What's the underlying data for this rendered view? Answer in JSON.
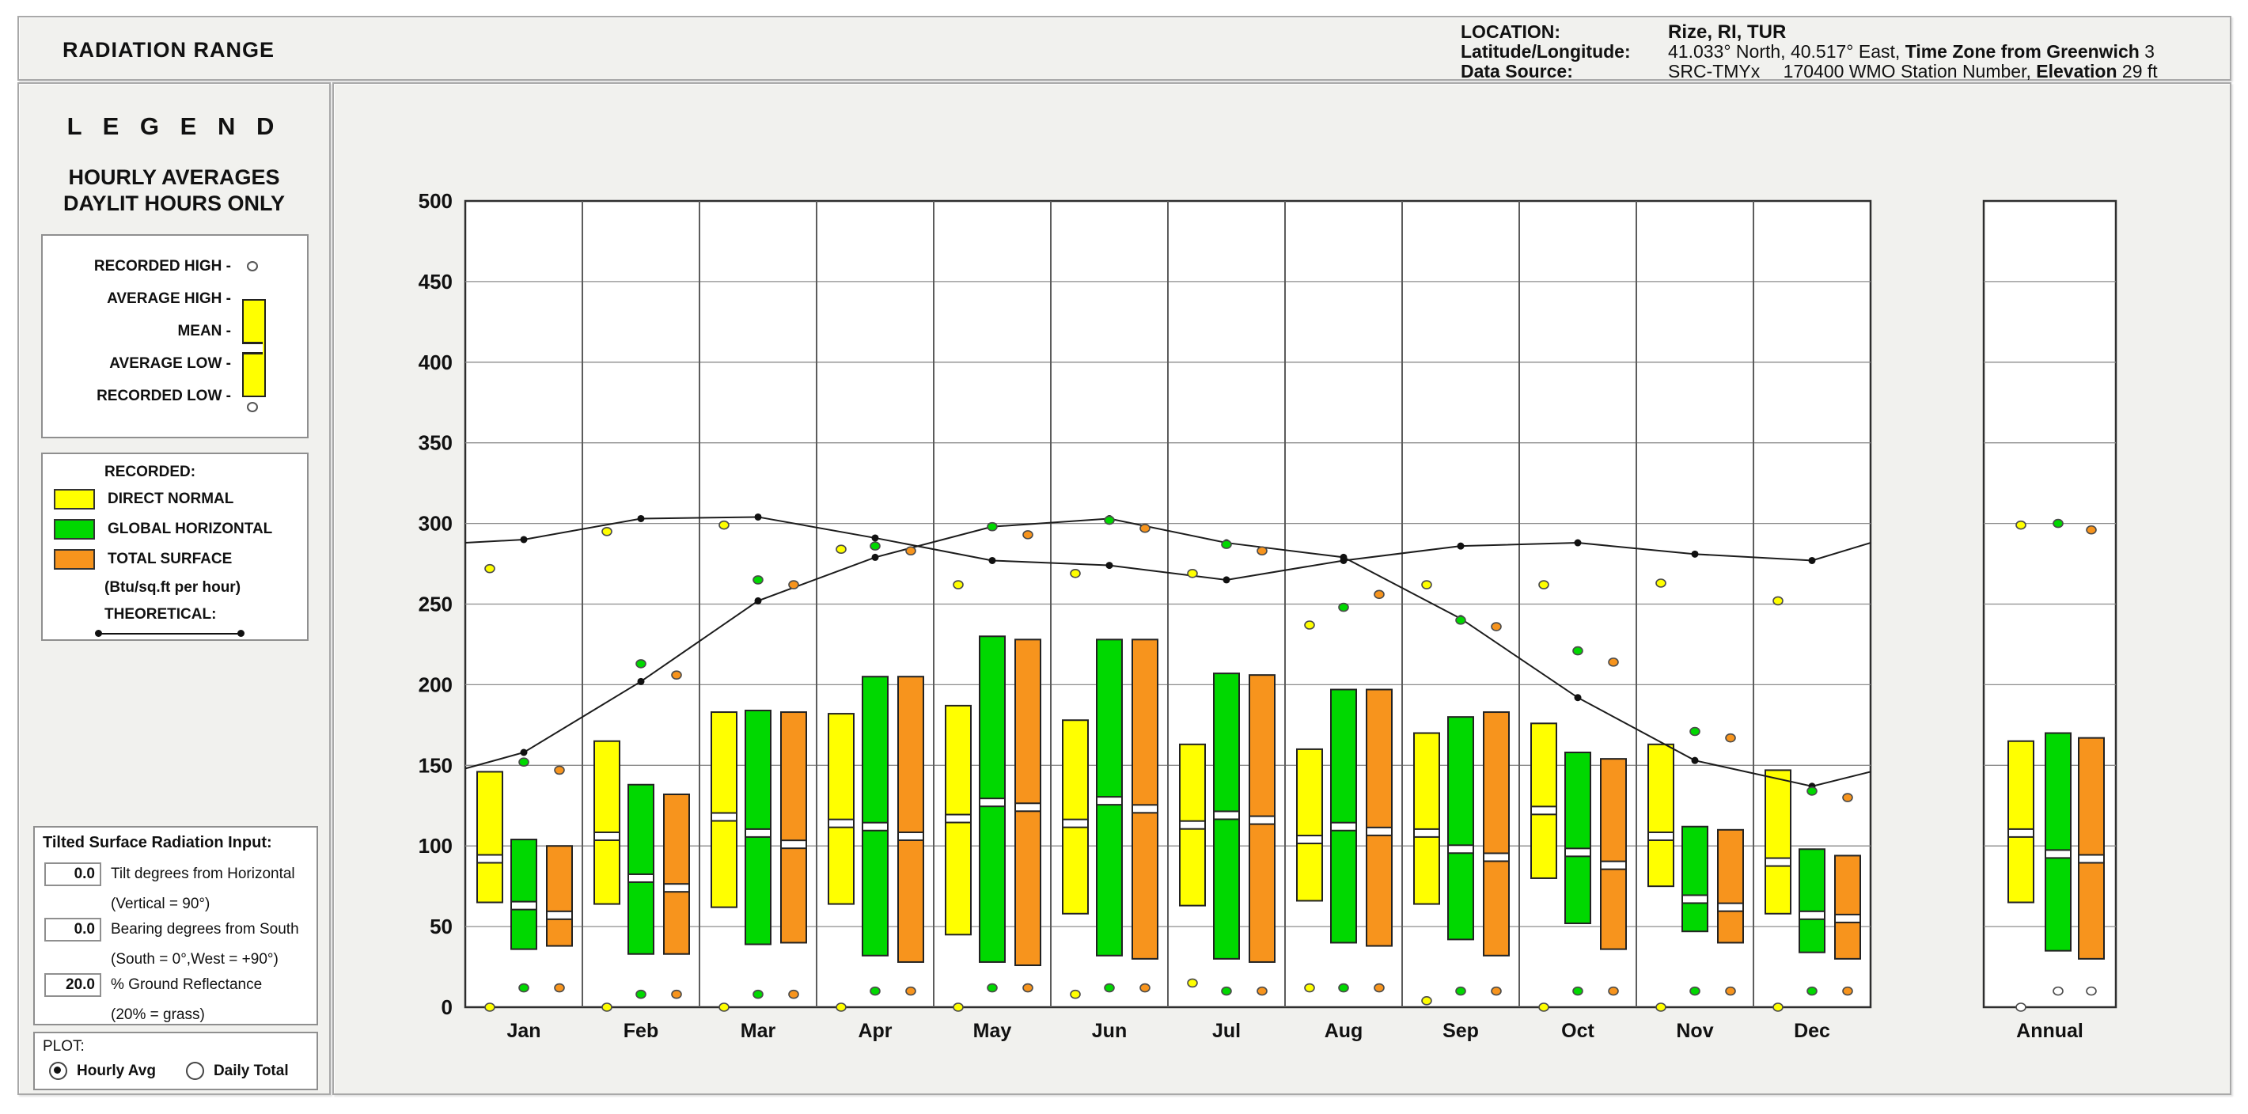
{
  "header": {
    "title": "RADIATION RANGE",
    "rows": [
      {
        "label": "LOCATION:",
        "parts": [
          {
            "t": "Rize, RI, TUR",
            "b": true
          }
        ]
      },
      {
        "label": "Latitude/Longitude:",
        "parts": [
          {
            "t": "41.033° North, 40.517° East, ",
            "b": false
          },
          {
            "t": "Time Zone from Greenwich",
            "b": true
          },
          {
            "t": " 3",
            "b": false
          }
        ]
      },
      {
        "label": "Data Source:",
        "parts": [
          {
            "t": "SRC-TMYx  170400 WMO Station Number, ",
            "b": false
          },
          {
            "t": "Elevation",
            "b": true
          },
          {
            "t": " 29 ft",
            "b": false
          }
        ]
      }
    ]
  },
  "legend": {
    "title": "L E G E N D",
    "subtitle1": "HOURLY AVERAGES",
    "subtitle2": "DAYLIT HOURS ONLY",
    "range_items": [
      "RECORDED HIGH -",
      "AVERAGE HIGH -",
      "MEAN -",
      "AVERAGE LOW -",
      "RECORDED LOW -"
    ],
    "recorded_label": "RECORDED:",
    "series": [
      {
        "label": "DIRECT NORMAL",
        "color": "#ffff00"
      },
      {
        "label": "GLOBAL HORIZONTAL",
        "color": "#00d800"
      },
      {
        "label": "TOTAL SURFACE",
        "color": "#f7941d"
      }
    ],
    "units_note": "(Btu/sq.ft per hour)",
    "theoretical_label": "THEORETICAL:"
  },
  "inputs": {
    "title": "Tilted Surface Radiation Input:",
    "fields": [
      {
        "value": "0.0",
        "label": "Tilt degrees from Horizontal",
        "sublabel": "(Vertical = 90°)"
      },
      {
        "value": "0.0",
        "label": "Bearing degrees from South",
        "sublabel": "(South = 0°,West = +90°)"
      },
      {
        "value": "20.0",
        "label": "% Ground Reflectance",
        "sublabel": "(20% = grass)"
      }
    ]
  },
  "plot_options": {
    "title": "PLOT:",
    "options": [
      {
        "label": "Hourly Avg",
        "selected": true
      },
      {
        "label": "Daily Total",
        "selected": false
      }
    ]
  },
  "chart_data": {
    "type": "box-range",
    "title": "RADIATION RANGE",
    "ylabel": "Btu/sq.ft per hour",
    "ylim": [
      0,
      500
    ],
    "ytick_step": 50,
    "grid": true,
    "categories": [
      "Jan",
      "Feb",
      "Mar",
      "Apr",
      "May",
      "Jun",
      "Jul",
      "Aug",
      "Sep",
      "Oct",
      "Nov",
      "Dec"
    ],
    "annual_label": "Annual",
    "series_colors": {
      "direct_normal": "#ffff00",
      "global_horizontal": "#00d800",
      "total_surface": "#f7941d"
    },
    "legend_note": "each box: avg_low..avg_high with mean band; dots: recorded high/low; lines: theoretical",
    "months": [
      {
        "name": "Jan",
        "dn": {
          "rec_low": 0,
          "avg_low": 65,
          "mean": 92,
          "avg_high": 146,
          "rec_high": 272
        },
        "gh": {
          "rec_low": 12,
          "avg_low": 36,
          "mean": 63,
          "avg_high": 104,
          "rec_high": 152
        },
        "ts": {
          "rec_low": 12,
          "avg_low": 38,
          "mean": 57,
          "avg_high": 100,
          "rec_high": 147
        },
        "theoretical_direct": 290,
        "theoretical_global": 158
      },
      {
        "name": "Feb",
        "dn": {
          "rec_low": 0,
          "avg_low": 64,
          "mean": 106,
          "avg_high": 165,
          "rec_high": 295
        },
        "gh": {
          "rec_low": 8,
          "avg_low": 33,
          "mean": 80,
          "avg_high": 138,
          "rec_high": 213
        },
        "ts": {
          "rec_low": 8,
          "avg_low": 33,
          "mean": 74,
          "avg_high": 132,
          "rec_high": 206
        },
        "theoretical_direct": 303,
        "theoretical_global": 202
      },
      {
        "name": "Mar",
        "dn": {
          "rec_low": 0,
          "avg_low": 62,
          "mean": 118,
          "avg_high": 183,
          "rec_high": 299
        },
        "gh": {
          "rec_low": 8,
          "avg_low": 39,
          "mean": 108,
          "avg_high": 184,
          "rec_high": 265
        },
        "ts": {
          "rec_low": 8,
          "avg_low": 40,
          "mean": 101,
          "avg_high": 183,
          "rec_high": 262
        },
        "theoretical_direct": 304,
        "theoretical_global": 252
      },
      {
        "name": "Apr",
        "dn": {
          "rec_low": 0,
          "avg_low": 64,
          "mean": 114,
          "avg_high": 182,
          "rec_high": 284
        },
        "gh": {
          "rec_low": 10,
          "avg_low": 32,
          "mean": 112,
          "avg_high": 205,
          "rec_high": 286
        },
        "ts": {
          "rec_low": 10,
          "avg_low": 28,
          "mean": 106,
          "avg_high": 205,
          "rec_high": 283
        },
        "theoretical_direct": 291,
        "theoretical_global": 279
      },
      {
        "name": "May",
        "dn": {
          "rec_low": 0,
          "avg_low": 45,
          "mean": 117,
          "avg_high": 187,
          "rec_high": 262
        },
        "gh": {
          "rec_low": 12,
          "avg_low": 28,
          "mean": 127,
          "avg_high": 230,
          "rec_high": 298
        },
        "ts": {
          "rec_low": 12,
          "avg_low": 26,
          "mean": 124,
          "avg_high": 228,
          "rec_high": 293
        },
        "theoretical_direct": 277,
        "theoretical_global": 298
      },
      {
        "name": "Jun",
        "dn": {
          "rec_low": 8,
          "avg_low": 58,
          "mean": 114,
          "avg_high": 178,
          "rec_high": 269
        },
        "gh": {
          "rec_low": 12,
          "avg_low": 32,
          "mean": 128,
          "avg_high": 228,
          "rec_high": 302
        },
        "ts": {
          "rec_low": 12,
          "avg_low": 30,
          "mean": 123,
          "avg_high": 228,
          "rec_high": 297
        },
        "theoretical_direct": 274,
        "theoretical_global": 303
      },
      {
        "name": "Jul",
        "dn": {
          "rec_low": 15,
          "avg_low": 63,
          "mean": 113,
          "avg_high": 163,
          "rec_high": 269
        },
        "gh": {
          "rec_low": 10,
          "avg_low": 30,
          "mean": 119,
          "avg_high": 207,
          "rec_high": 287
        },
        "ts": {
          "rec_low": 10,
          "avg_low": 28,
          "mean": 116,
          "avg_high": 206,
          "rec_high": 283
        },
        "theoretical_direct": 265,
        "theoretical_global": 288
      },
      {
        "name": "Aug",
        "dn": {
          "rec_low": 12,
          "avg_low": 66,
          "mean": 104,
          "avg_high": 160,
          "rec_high": 237
        },
        "gh": {
          "rec_low": 12,
          "avg_low": 40,
          "mean": 112,
          "avg_high": 197,
          "rec_high": 248
        },
        "ts": {
          "rec_low": 12,
          "avg_low": 38,
          "mean": 109,
          "avg_high": 197,
          "rec_high": 256
        },
        "theoretical_direct": 277,
        "theoretical_global": 279
      },
      {
        "name": "Sep",
        "dn": {
          "rec_low": 4,
          "avg_low": 64,
          "mean": 108,
          "avg_high": 170,
          "rec_high": 262
        },
        "gh": {
          "rec_low": 10,
          "avg_low": 42,
          "mean": 98,
          "avg_high": 180,
          "rec_high": 240
        },
        "ts": {
          "rec_low": 10,
          "avg_low": 32,
          "mean": 93,
          "avg_high": 183,
          "rec_high": 236
        },
        "theoretical_direct": 286,
        "theoretical_global": 241
      },
      {
        "name": "Oct",
        "dn": {
          "rec_low": 0,
          "avg_low": 80,
          "mean": 122,
          "avg_high": 176,
          "rec_high": 262
        },
        "gh": {
          "rec_low": 10,
          "avg_low": 52,
          "mean": 96,
          "avg_high": 158,
          "rec_high": 221
        },
        "ts": {
          "rec_low": 10,
          "avg_low": 36,
          "mean": 88,
          "avg_high": 154,
          "rec_high": 214
        },
        "theoretical_direct": 288,
        "theoretical_global": 192
      },
      {
        "name": "Nov",
        "dn": {
          "rec_low": 0,
          "avg_low": 75,
          "mean": 106,
          "avg_high": 163,
          "rec_high": 263
        },
        "gh": {
          "rec_low": 10,
          "avg_low": 47,
          "mean": 67,
          "avg_high": 112,
          "rec_high": 171
        },
        "ts": {
          "rec_low": 10,
          "avg_low": 40,
          "mean": 62,
          "avg_high": 110,
          "rec_high": 167
        },
        "theoretical_direct": 281,
        "theoretical_global": 153
      },
      {
        "name": "Dec",
        "dn": {
          "rec_low": 0,
          "avg_low": 58,
          "mean": 90,
          "avg_high": 147,
          "rec_high": 252
        },
        "gh": {
          "rec_low": 10,
          "avg_low": 34,
          "mean": 57,
          "avg_high": 98,
          "rec_high": 134
        },
        "ts": {
          "rec_low": 10,
          "avg_low": 30,
          "mean": 55,
          "avg_high": 94,
          "rec_high": 130
        },
        "theoretical_direct": 277,
        "theoretical_global": 137
      }
    ],
    "annual": {
      "name": "Annual",
      "dn": {
        "rec_low": 0,
        "avg_low": 65,
        "mean": 108,
        "avg_high": 165,
        "rec_high": 299
      },
      "gh": {
        "rec_low": 10,
        "avg_low": 35,
        "mean": 95,
        "avg_high": 170,
        "rec_high": 300
      },
      "ts": {
        "rec_low": 10,
        "avg_low": 30,
        "mean": 92,
        "avg_high": 167,
        "rec_high": 296
      }
    },
    "theoretical_direct_edges": [
      288,
      288
    ],
    "theoretical_global_edges": [
      148,
      146
    ]
  }
}
